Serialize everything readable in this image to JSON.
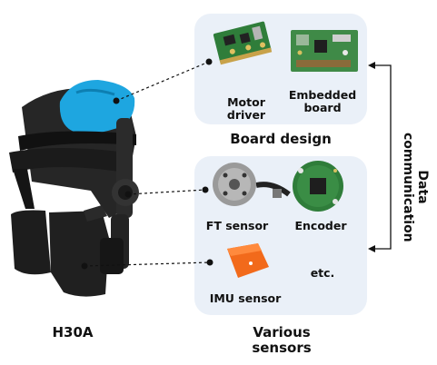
{
  "device": {
    "name": "H30A"
  },
  "board_panel": {
    "items": [
      {
        "label_line1": "Motor",
        "label_line2": "driver"
      },
      {
        "label_line1": "Embedded",
        "label_line2": "board"
      }
    ],
    "caption": "Board design"
  },
  "sensor_panel": {
    "items": [
      {
        "label": "FT sensor"
      },
      {
        "label": "Encoder"
      },
      {
        "label": "IMU sensor"
      },
      {
        "label": "etc."
      }
    ],
    "caption_line1": "Various",
    "caption_line2": "sensors"
  },
  "link": {
    "line1": "Data",
    "line2": "communication"
  },
  "colors": {
    "panel": "#eaf0f8",
    "pcb_green": "#2f7d3a",
    "cushion_blue": "#1ea6e0",
    "imu_orange": "#f26a1b",
    "strap_black": "#1b1b1b"
  }
}
